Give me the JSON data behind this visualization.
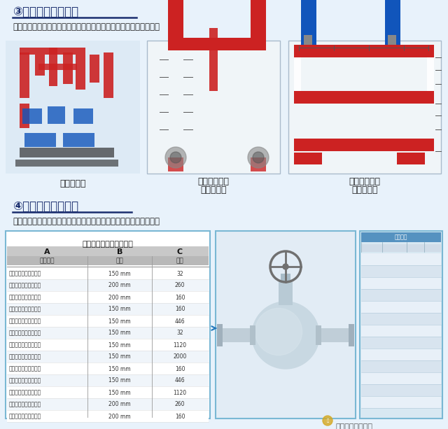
{
  "bg_color": "#e8f2fb",
  "title3": "③工厂化预制加工图",
  "subtitle3": "根据最终完成的深化设计图，绘制预制加工图，指导管段预制加工。",
  "label_left": "管道分段图",
  "label_mid_1": "竖向管段预制",
  "label_mid_2": "尺寸加工图",
  "label_right_1": "横向管段预制",
  "label_right_2": "尺寸加工图",
  "title4": "④料表生成指导加工",
  "subtitle4": "根据最终完成的深化设计图，绘制预制加工图，指导管段预制加工。",
  "table_title": "〈预制管道加工尺寸表〉",
  "col_A": "A",
  "col_B": "B",
  "col_C": "C",
  "sub_A": "管道类型",
  "sub_B": "尺寸",
  "sub_C": "数量",
  "table_data": [
    [
      "管道类型：消火栓系统",
      "150 mm",
      "32"
    ],
    [
      "管道类型：消火栓系统",
      "200 mm",
      "260"
    ],
    [
      "管道类型：消火栓系统",
      "200 mm",
      "160"
    ],
    [
      "管道类型：消火栓系统",
      "150 mm",
      "160"
    ],
    [
      "管道类型：消火栓系统",
      "150 mm",
      "446"
    ],
    [
      "管道类型：消火栓系统",
      "150 mm",
      "32"
    ],
    [
      "管道类型：消火栓系统",
      "150 mm",
      "1120"
    ],
    [
      "管道类型：消火栓系统",
      "150 mm",
      "2000"
    ],
    [
      "管道类型：消火栓系统",
      "150 mm",
      "160"
    ],
    [
      "管道类型：消火栓系统",
      "150 mm",
      "446"
    ],
    [
      "管道类型：消火栓系统",
      "150 mm",
      "1120"
    ],
    [
      "管道类型：消火栓系统",
      "200 mm",
      "260"
    ],
    [
      "管道类型：消火栓系统",
      "200 mm",
      "160"
    ]
  ],
  "watermark": "中建八局大连公司",
  "red": "#cc2222",
  "blue": "#1155bb",
  "dark_blue_text": "#1a2e6e",
  "title_underline": true,
  "table_border_color": "#7ab8d4",
  "header_gray": "#c8c8c8",
  "subheader_gray": "#b8b8b8",
  "row_white": "#ffffff",
  "row_light": "#f0f5fa",
  "pipe_bg": "#ddeaf5",
  "valve_bg": "#e2ecf5",
  "sw_bg": "#d8e8f2",
  "sw_header": "#5592c0",
  "sw_row1": "#e8f0f8",
  "sw_row2": "#d8e4ef"
}
